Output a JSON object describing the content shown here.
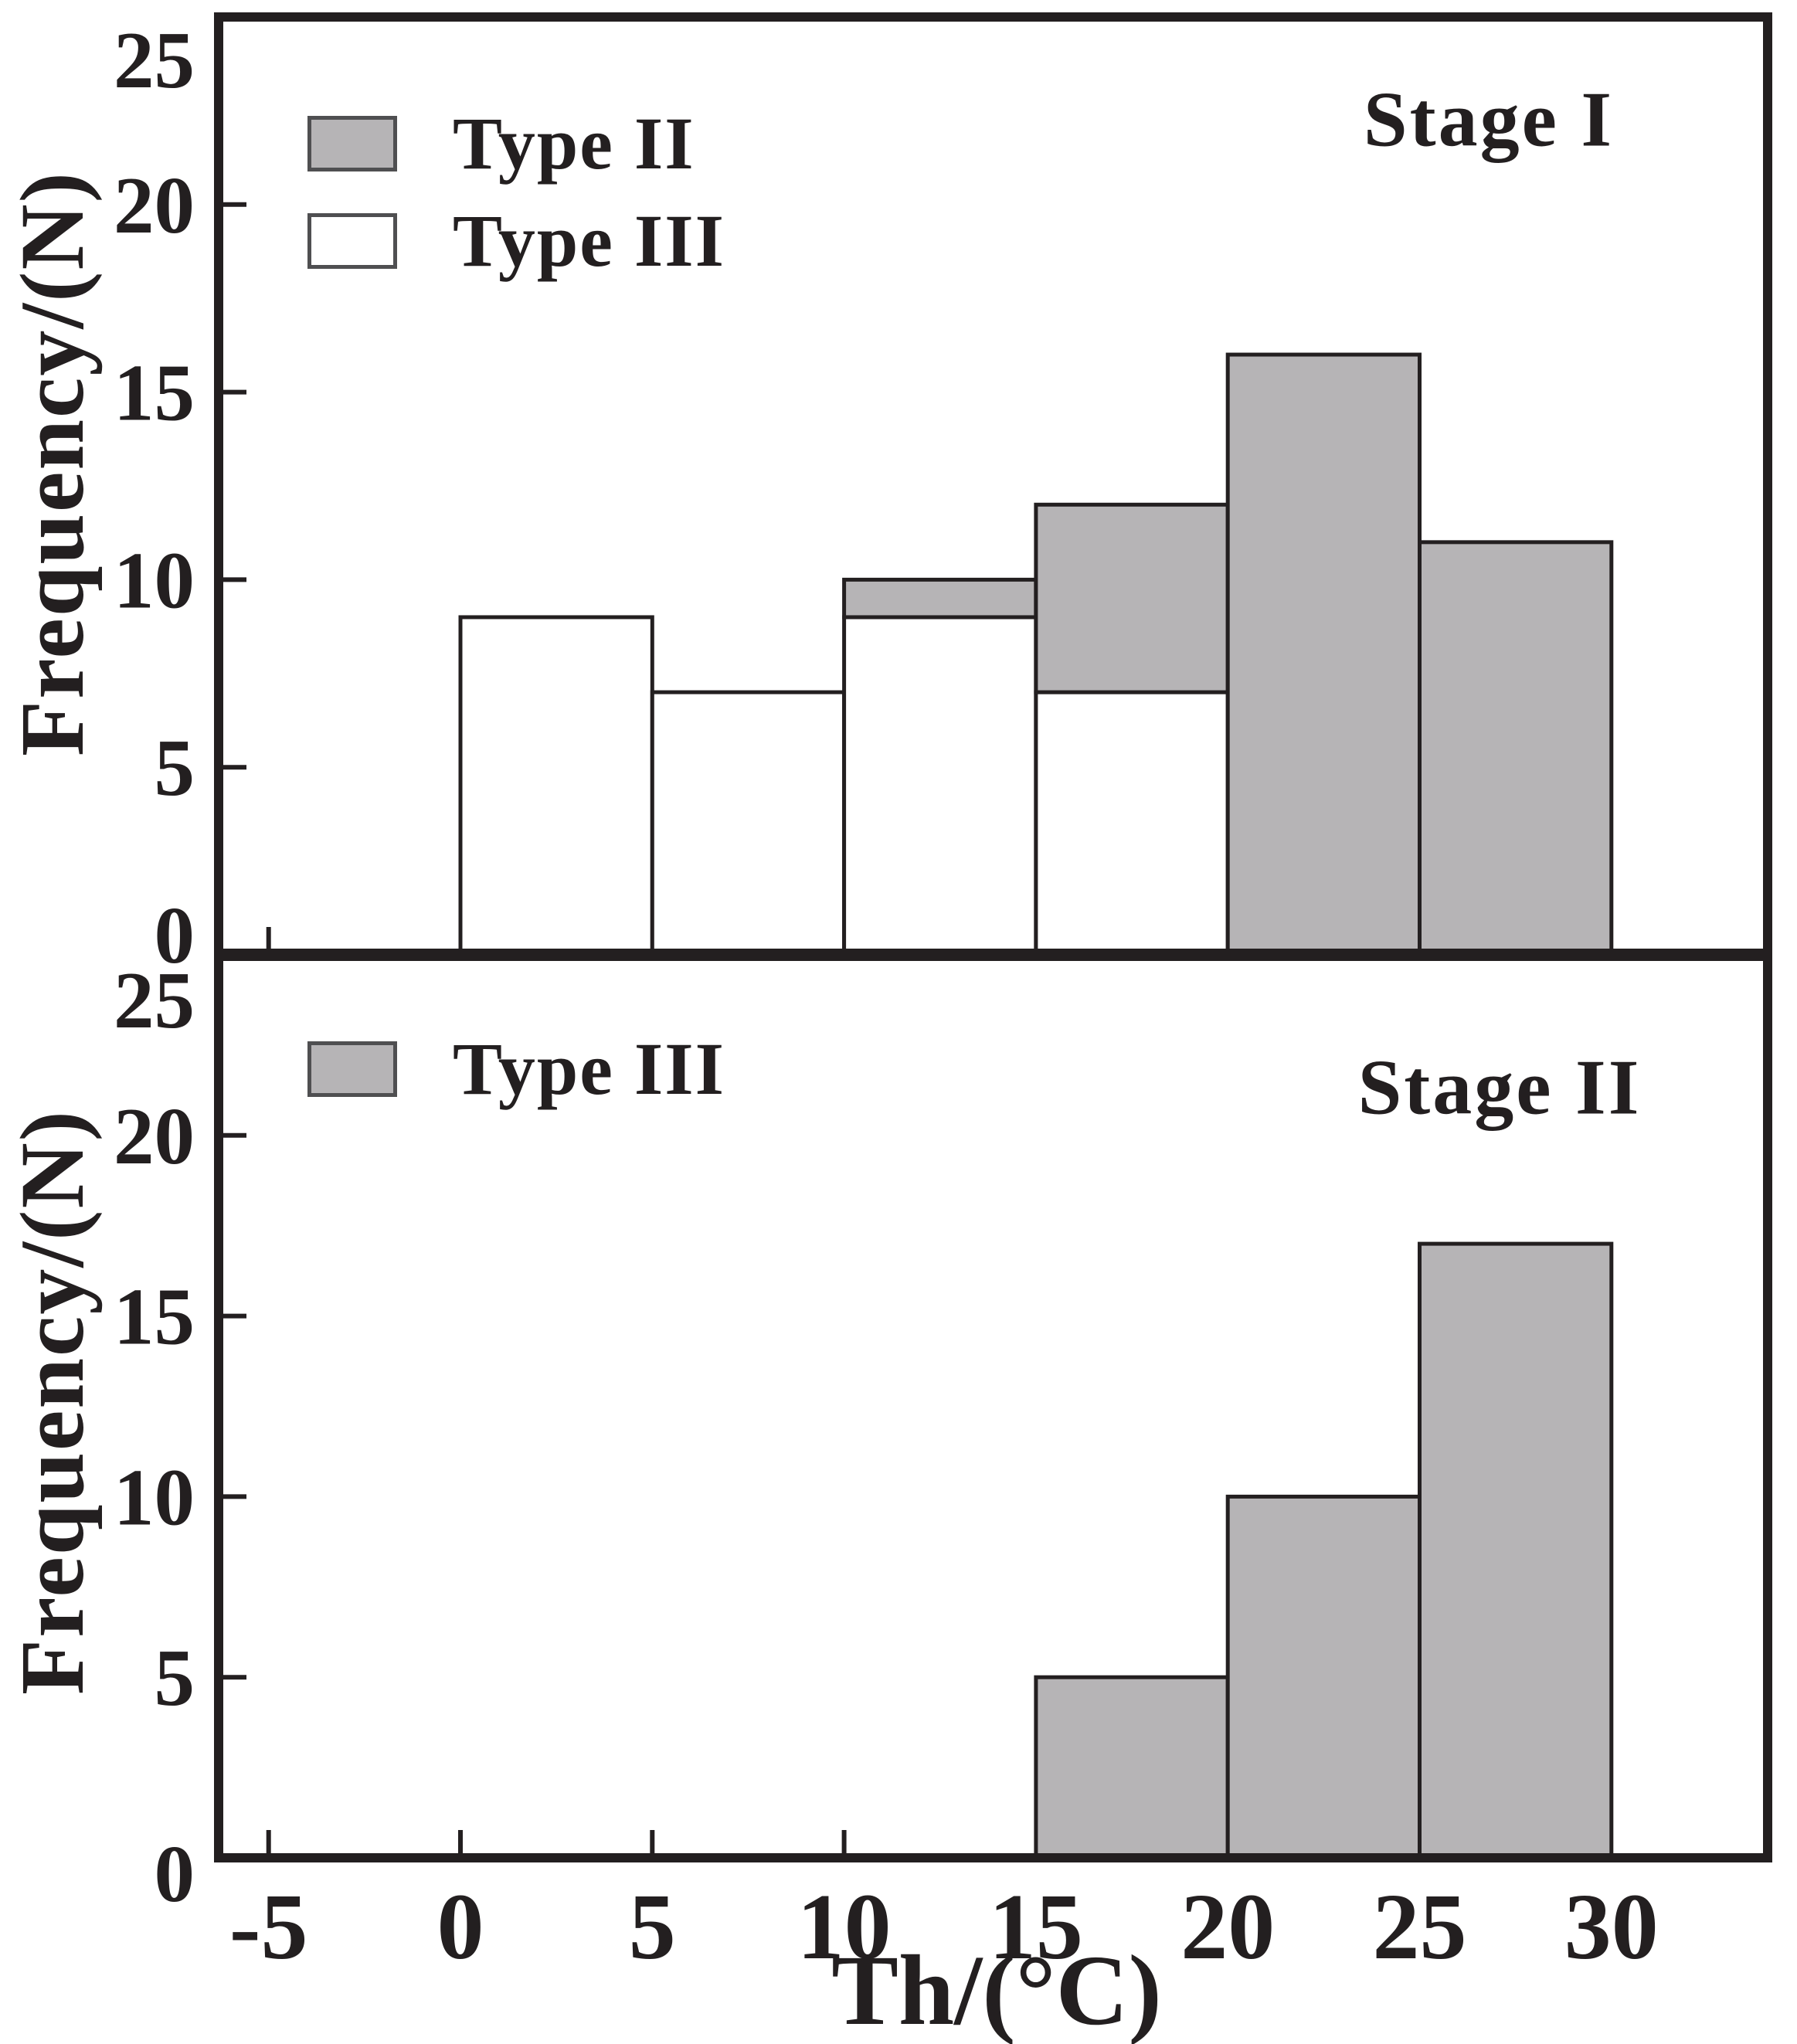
{
  "figure": {
    "background": "#ffffff",
    "ink_color": "#231f20",
    "bar_fill_gray": "#b6b4b6",
    "bar_fill_white": "#ffffff",
    "legend_swatch_border": "#4f4f51"
  },
  "panels": [
    {
      "title": "Stage I",
      "ylabel": "Frequency/(N)",
      "legend": [
        {
          "label": "Type II",
          "fill": "gray"
        },
        {
          "label": "Type III",
          "fill": "white"
        }
      ]
    },
    {
      "title": "Stage II",
      "ylabel": "Frequency/(N)",
      "legend": [
        {
          "label": "Type III",
          "fill": "gray"
        }
      ]
    }
  ],
  "xaxis": {
    "label": "Th/(°C)",
    "ticks": [
      -5,
      0,
      5,
      10,
      15,
      20,
      25,
      30
    ]
  },
  "chart_data": [
    {
      "type": "bar",
      "subtype": "stacked-histogram",
      "title": "Stage I",
      "xlabel": "Th/(°C)",
      "ylabel": "Frequency/(N)",
      "bin_width": 5,
      "bins": [
        [
          0,
          5
        ],
        [
          5,
          10
        ],
        [
          10,
          15
        ],
        [
          15,
          20
        ],
        [
          20,
          25
        ],
        [
          25,
          30
        ]
      ],
      "series": [
        {
          "name": "Type III",
          "fill": "white",
          "values": [
            9,
            7,
            9,
            7,
            0,
            0
          ]
        },
        {
          "name": "Type II",
          "fill": "gray",
          "values": [
            0,
            0,
            1,
            5,
            16,
            11
          ]
        }
      ],
      "stacked": true,
      "ylim": [
        0,
        25
      ],
      "yticks": [
        0,
        5,
        10,
        15,
        20,
        25
      ],
      "xticks": [
        -5,
        0,
        5,
        10,
        15,
        20,
        25,
        30
      ],
      "legend_position": "upper-left",
      "grid": false
    },
    {
      "type": "bar",
      "subtype": "histogram",
      "title": "Stage II",
      "xlabel": "Th/(°C)",
      "ylabel": "Frequency/(N)",
      "bin_width": 5,
      "bins": [
        [
          15,
          20
        ],
        [
          20,
          25
        ],
        [
          25,
          30
        ]
      ],
      "series": [
        {
          "name": "Type III",
          "fill": "gray",
          "values": [
            5,
            10,
            17
          ]
        }
      ],
      "stacked": false,
      "ylim": [
        0,
        25
      ],
      "yticks": [
        0,
        5,
        10,
        15,
        20,
        25
      ],
      "xticks": [
        -5,
        0,
        5,
        10,
        15,
        20,
        25,
        30
      ],
      "legend_position": "upper-left",
      "grid": false
    }
  ]
}
